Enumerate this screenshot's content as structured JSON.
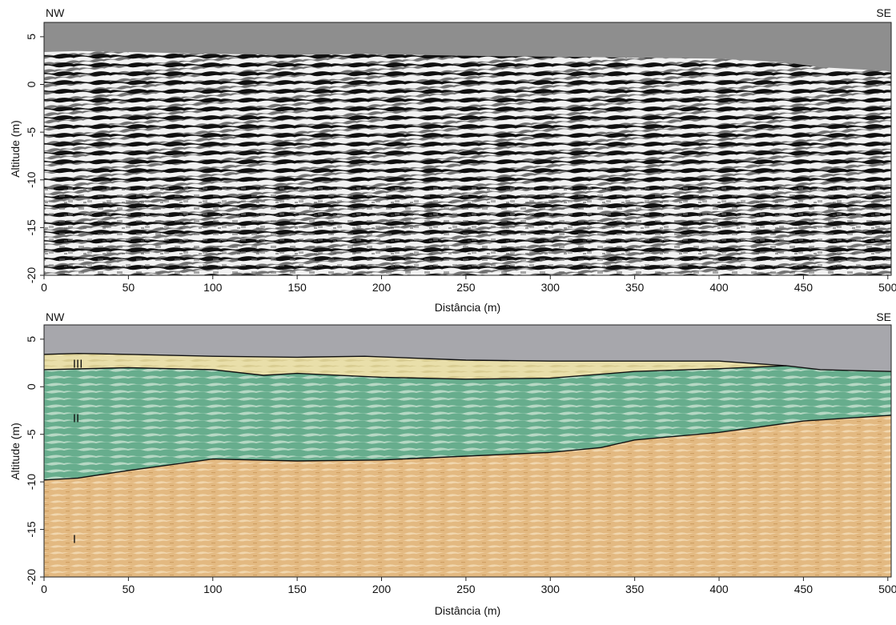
{
  "chart_data": [
    {
      "type": "radargram",
      "panel": "top",
      "title_left": "NW",
      "title_right": "SE",
      "xlabel": "Distância (m)",
      "ylabel": "Altitude (m)",
      "xlim": [
        0,
        502
      ],
      "ylim": [
        -20,
        6.5
      ],
      "x_ticks": [
        0,
        50,
        100,
        150,
        200,
        250,
        300,
        350,
        400,
        450,
        500
      ],
      "y_ticks": [
        5,
        0,
        -5,
        -10,
        -15,
        -20
      ],
      "surface": {
        "x": [
          0,
          20,
          50,
          100,
          150,
          190,
          250,
          300,
          350,
          400,
          440,
          460,
          480,
          502
        ],
        "y": [
          3.4,
          3.5,
          3.4,
          3.2,
          3.1,
          3.2,
          3.0,
          2.9,
          2.8,
          2.7,
          2.3,
          1.8,
          1.6,
          1.4
        ]
      },
      "colors": {
        "air": "#8e8e8e",
        "reflector_dark": "#111111",
        "reflector_light": "#f2f2f2",
        "scatter": "#6b6b6b"
      }
    },
    {
      "type": "interpreted-section",
      "panel": "bottom",
      "title_left": "NW",
      "title_right": "SE",
      "xlabel": "Distância (m)",
      "ylabel": "Altitude (m)",
      "xlim": [
        0,
        502
      ],
      "ylim": [
        -20,
        6.5
      ],
      "x_ticks": [
        0,
        50,
        100,
        150,
        200,
        250,
        300,
        350,
        400,
        450,
        500
      ],
      "y_ticks": [
        5,
        0,
        -5,
        -10,
        -15,
        -20
      ],
      "surface": {
        "x": [
          0,
          20,
          50,
          100,
          150,
          190,
          250,
          300,
          350,
          400,
          440,
          460,
          480,
          502
        ],
        "y": [
          3.4,
          3.5,
          3.4,
          3.2,
          3.1,
          3.2,
          2.8,
          2.7,
          2.7,
          2.7,
          2.2,
          1.8,
          1.7,
          1.6
        ]
      },
      "boundary_III_II": {
        "x": [
          0,
          50,
          100,
          130,
          150,
          200,
          250,
          300,
          350,
          400,
          440
        ],
        "y": [
          1.8,
          2.0,
          1.8,
          1.2,
          1.4,
          1.0,
          0.8,
          0.9,
          1.6,
          1.9,
          2.2
        ]
      },
      "boundary_II_I": {
        "x": [
          0,
          20,
          50,
          100,
          150,
          200,
          250,
          300,
          330,
          350,
          400,
          450,
          502
        ],
        "y": [
          -9.8,
          -9.6,
          -8.8,
          -7.6,
          -7.8,
          -7.7,
          -7.3,
          -6.9,
          -6.4,
          -5.6,
          -4.8,
          -3.6,
          -3.0
        ]
      },
      "units": [
        {
          "name": "III",
          "x": 20,
          "y": 2.4
        },
        {
          "name": "II",
          "x": 19,
          "y": -3.3
        },
        {
          "name": "I",
          "x": 18,
          "y": -16
        }
      ],
      "colors": {
        "air": "#a7a7ac",
        "unit_III": "#e9dfaa",
        "unit_II": "#67ad8d",
        "unit_I": "#e3b981"
      }
    }
  ]
}
